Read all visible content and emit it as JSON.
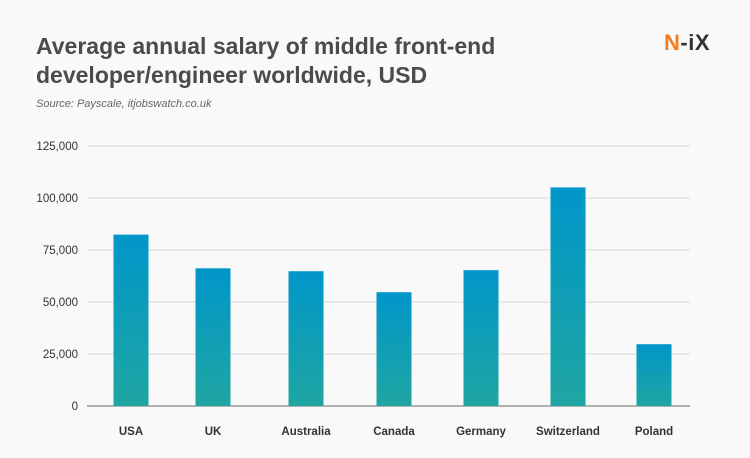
{
  "chart_data": {
    "type": "bar",
    "title": "Average annual salary of middle front-end developer/engineer worldwide, USD",
    "subtitle": "Source: Payscale, itjobswatch.co.uk",
    "categories": [
      "USA",
      "UK",
      "Australia",
      "Canada",
      "Germany",
      "Switzerland",
      "Poland"
    ],
    "values": [
      82400,
      66200,
      64800,
      54700,
      65300,
      105100,
      29700
    ],
    "ylim": [
      0,
      125000
    ],
    "yticks": [
      0,
      25000,
      50000,
      75000,
      100000,
      125000
    ],
    "ytick_labels": [
      "0",
      "25,000",
      "50,000",
      "75,000",
      "100,000",
      "125,000"
    ],
    "xlabel": "",
    "ylabel": "",
    "grid": true,
    "bar_gradient": [
      "#0096c9",
      "#1fa6a2"
    ]
  },
  "logo": {
    "text": "N-iX",
    "first": "N",
    "rest": "-iX",
    "color": "#f47b20"
  }
}
